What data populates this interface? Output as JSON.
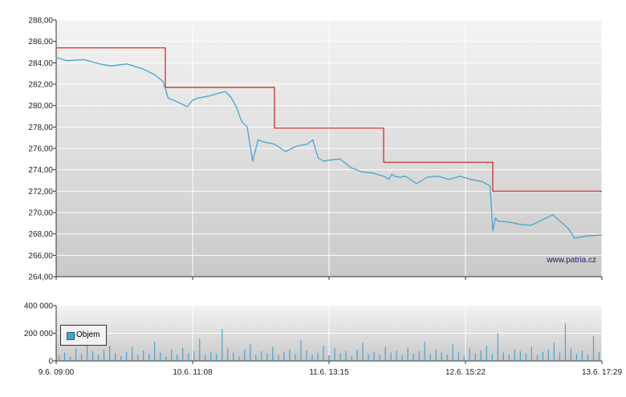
{
  "watermark": "www.patria.cz",
  "legend": {
    "label": "Objem",
    "color": "#4aa3cf"
  },
  "colors": {
    "price": "#4aa3cf",
    "reference": "#cc2222",
    "volume": "#4aa3cf",
    "grid": "#ffffff"
  },
  "chart_data": [
    {
      "type": "line",
      "xlabel": "",
      "ylabel": "",
      "x_ticks": [
        "9.6. 09:00",
        "10.6. 11:08",
        "11.6. 13:15",
        "12.6. 15:22",
        "13.6. 17:29"
      ],
      "y_ticks": [
        "264,00",
        "266,00",
        "268,00",
        "270,00",
        "272,00",
        "274,00",
        "276,00",
        "278,00",
        "280,00",
        "282,00",
        "284,00",
        "286,00",
        "288,00"
      ],
      "ylim": [
        264,
        288
      ],
      "grid": true,
      "series": [
        {
          "key": "price",
          "x": [
            0,
            0.02,
            0.05,
            0.08,
            0.1,
            0.13,
            0.16,
            0.18,
            0.195,
            0.2,
            0.205,
            0.21,
            0.22,
            0.24,
            0.25,
            0.26,
            0.28,
            0.3,
            0.31,
            0.32,
            0.33,
            0.34,
            0.35,
            0.36,
            0.37,
            0.38,
            0.4,
            0.42,
            0.44,
            0.46,
            0.47,
            0.48,
            0.49,
            0.5,
            0.52,
            0.54,
            0.56,
            0.58,
            0.6,
            0.61,
            0.615,
            0.62,
            0.63,
            0.64,
            0.66,
            0.68,
            0.7,
            0.72,
            0.74,
            0.76,
            0.78,
            0.795,
            0.8,
            0.805,
            0.81,
            0.83,
            0.85,
            0.87,
            0.89,
            0.91,
            0.93,
            0.94,
            0.95,
            0.97,
            1.0
          ],
          "values": [
            284.5,
            284.2,
            284.3,
            283.9,
            283.7,
            283.9,
            283.4,
            282.9,
            282.3,
            281.6,
            280.7,
            280.6,
            280.4,
            279.9,
            280.5,
            280.7,
            280.9,
            281.2,
            281.3,
            280.8,
            279.9,
            278.5,
            278.0,
            274.8,
            276.8,
            276.6,
            276.4,
            275.7,
            276.2,
            276.4,
            276.8,
            275.1,
            274.8,
            274.9,
            275.0,
            274.2,
            273.8,
            273.7,
            273.4,
            273.1,
            273.6,
            273.4,
            273.3,
            273.4,
            272.7,
            273.3,
            273.4,
            273.1,
            273.4,
            273.1,
            272.9,
            272.5,
            268.3,
            269.5,
            269.2,
            269.1,
            268.9,
            268.8,
            269.3,
            269.8,
            268.9,
            268.4,
            267.6,
            267.8,
            267.9
          ]
        },
        {
          "key": "reference",
          "x": [
            0,
            0.2,
            0.2,
            0.4,
            0.4,
            0.6,
            0.6,
            0.8,
            0.8,
            1.0
          ],
          "values": [
            285.4,
            285.4,
            281.7,
            281.7,
            277.9,
            277.9,
            274.7,
            274.7,
            272.0,
            272.0
          ]
        }
      ]
    },
    {
      "type": "bar",
      "name": "Objem",
      "y_ticks": [
        "0",
        "200 000",
        "400 000"
      ],
      "ylim": [
        0,
        400000
      ],
      "grid": true,
      "values": [
        40000,
        60000,
        30000,
        90000,
        50000,
        120000,
        70000,
        45000,
        80000,
        110000,
        55000,
        35000,
        65000,
        100000,
        40000,
        75000,
        50000,
        140000,
        60000,
        30000,
        85000,
        45000,
        95000,
        55000,
        70000,
        160000,
        40000,
        65000,
        50000,
        230000,
        90000,
        60000,
        35000,
        80000,
        120000,
        45000,
        70000,
        55000,
        100000,
        40000,
        65000,
        85000,
        50000,
        150000,
        75000,
        45000,
        60000,
        110000,
        40000,
        90000,
        55000,
        70000,
        35000,
        80000,
        130000,
        50000,
        65000,
        45000,
        100000,
        60000,
        75000,
        40000,
        95000,
        55000,
        70000,
        140000,
        50000,
        85000,
        60000,
        45000,
        120000,
        65000,
        40000,
        90000,
        55000,
        75000,
        110000,
        50000,
        200000,
        60000,
        45000,
        85000,
        70000,
        55000,
        100000,
        40000,
        65000,
        80000,
        130000,
        60000,
        270000,
        90000,
        50000,
        75000,
        45000,
        180000,
        65000
      ]
    }
  ]
}
